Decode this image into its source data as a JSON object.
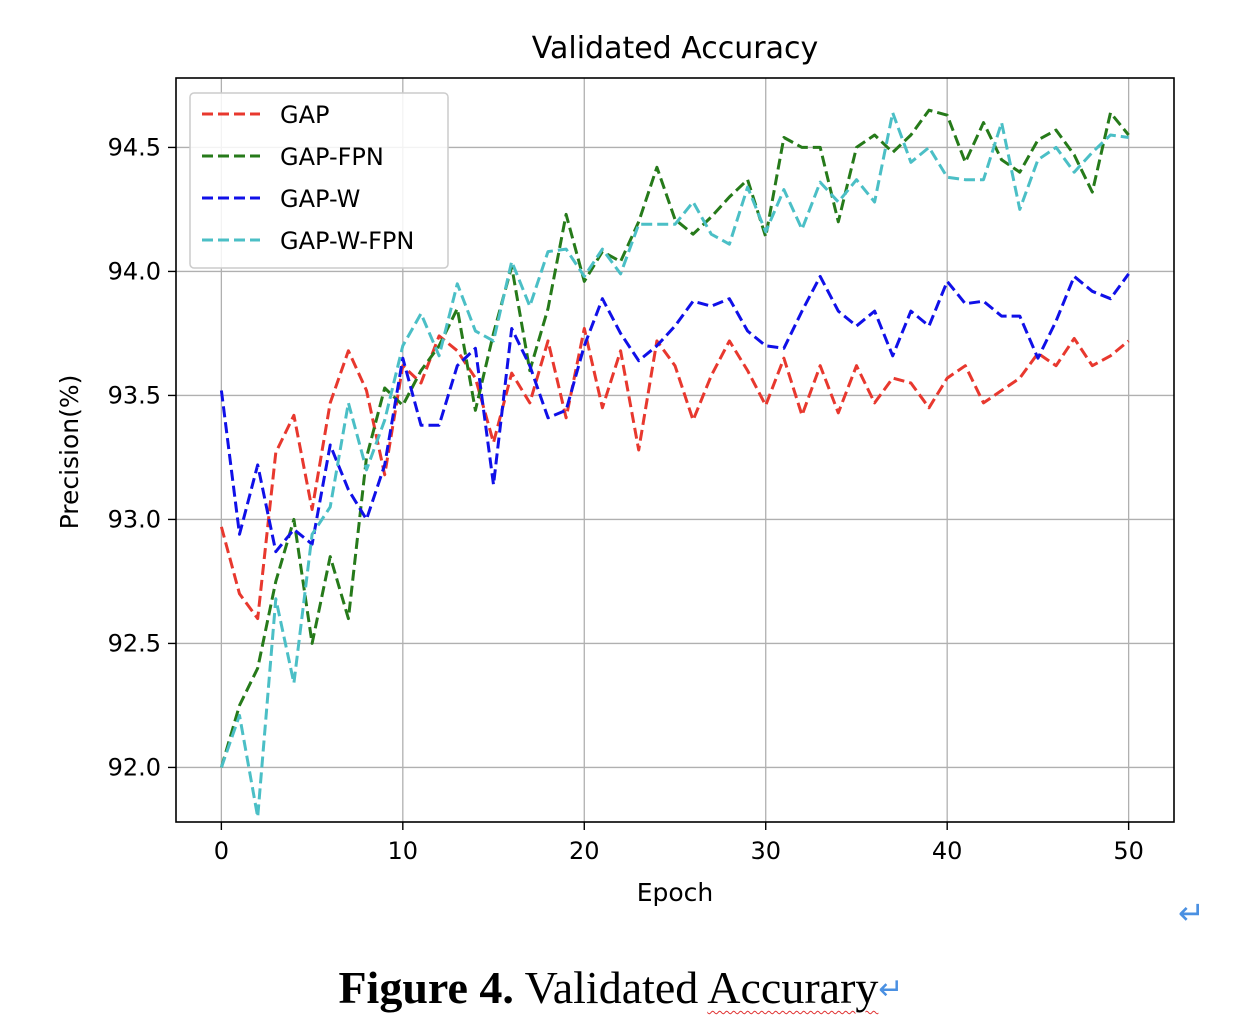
{
  "chart_data": {
    "type": "line",
    "title": "Validated Accuracy",
    "xlabel": "Epoch",
    "ylabel": "Precision(%)",
    "xlim": [
      -2.5,
      52.5
    ],
    "ylim": [
      91.78,
      94.78
    ],
    "xticks": [
      0,
      10,
      20,
      30,
      40,
      50
    ],
    "xtick_labels": [
      "0",
      "10",
      "20",
      "30",
      "40",
      "50"
    ],
    "yticks": [
      92.0,
      92.5,
      93.0,
      93.5,
      94.0,
      94.5
    ],
    "ytick_labels": [
      "92.0",
      "92.5",
      "93.0",
      "93.5",
      "94.0",
      "94.5"
    ],
    "grid": true,
    "line_style": "dashed",
    "legend_position": "upper-left",
    "x": [
      0,
      1,
      2,
      3,
      4,
      5,
      6,
      7,
      8,
      9,
      10,
      11,
      12,
      13,
      14,
      15,
      16,
      17,
      18,
      19,
      20,
      21,
      22,
      23,
      24,
      25,
      26,
      27,
      28,
      29,
      30,
      31,
      32,
      33,
      34,
      35,
      36,
      37,
      38,
      39,
      40,
      41,
      42,
      43,
      44,
      45,
      46,
      47,
      48,
      49,
      50
    ],
    "series": [
      {
        "name": "GAP",
        "color": "#e8382e",
        "values": [
          92.97,
          92.7,
          92.6,
          93.27,
          93.42,
          93.04,
          93.47,
          93.68,
          93.52,
          93.18,
          93.62,
          93.55,
          93.74,
          93.68,
          93.57,
          93.31,
          93.59,
          93.47,
          93.72,
          93.41,
          93.77,
          93.45,
          93.68,
          93.28,
          93.72,
          93.62,
          93.4,
          93.58,
          93.72,
          93.6,
          93.46,
          93.65,
          93.42,
          93.62,
          93.43,
          93.62,
          93.47,
          93.57,
          93.55,
          93.45,
          93.57,
          93.62,
          93.47,
          93.52,
          93.57,
          93.67,
          93.62,
          93.73,
          93.62,
          93.66,
          93.72
        ]
      },
      {
        "name": "GAP-FPN",
        "color": "#267a1a",
        "values": [
          92.0,
          92.25,
          92.4,
          92.75,
          93.0,
          92.5,
          92.85,
          92.6,
          93.25,
          93.53,
          93.46,
          93.6,
          93.7,
          93.85,
          93.44,
          93.75,
          94.02,
          93.6,
          93.85,
          94.23,
          93.96,
          94.08,
          94.04,
          94.2,
          94.42,
          94.21,
          94.15,
          94.22,
          94.3,
          94.37,
          94.14,
          94.54,
          94.5,
          94.5,
          94.2,
          94.5,
          94.55,
          94.48,
          94.55,
          94.65,
          94.63,
          94.44,
          94.6,
          94.45,
          94.4,
          94.53,
          94.57,
          94.47,
          94.32,
          94.64,
          94.55
        ]
      },
      {
        "name": "GAP-W",
        "color": "#1010e8",
        "values": [
          93.52,
          92.94,
          93.22,
          92.87,
          92.96,
          92.9,
          93.3,
          93.12,
          93.0,
          93.22,
          93.65,
          93.38,
          93.38,
          93.62,
          93.69,
          93.14,
          93.77,
          93.62,
          93.41,
          93.44,
          93.7,
          93.89,
          93.75,
          93.64,
          93.7,
          93.78,
          93.88,
          93.86,
          93.89,
          93.76,
          93.7,
          93.69,
          93.84,
          93.98,
          93.84,
          93.78,
          93.84,
          93.66,
          93.84,
          93.78,
          93.96,
          93.87,
          93.88,
          93.82,
          93.82,
          93.65,
          93.8,
          93.98,
          93.92,
          93.89,
          93.99
        ]
      },
      {
        "name": "GAP-W-FPN",
        "color": "#4bbfc6",
        "values": [
          92.0,
          92.21,
          91.8,
          92.68,
          92.34,
          92.94,
          93.05,
          93.47,
          93.2,
          93.4,
          93.7,
          93.83,
          93.66,
          93.95,
          93.76,
          93.72,
          94.04,
          93.86,
          94.08,
          94.09,
          93.98,
          94.09,
          93.99,
          94.19,
          94.19,
          94.19,
          94.28,
          94.15,
          94.11,
          94.34,
          94.16,
          94.33,
          94.17,
          94.36,
          94.28,
          94.37,
          94.28,
          94.64,
          94.44,
          94.5,
          94.38,
          94.37,
          94.37,
          94.6,
          94.25,
          94.45,
          94.5,
          94.4,
          94.48,
          94.55,
          94.54
        ]
      }
    ]
  },
  "caption": {
    "figure_label": "Figure 4.",
    "text": "Validated",
    "text_flagged": "Accurary",
    "return_mark": "↵"
  }
}
